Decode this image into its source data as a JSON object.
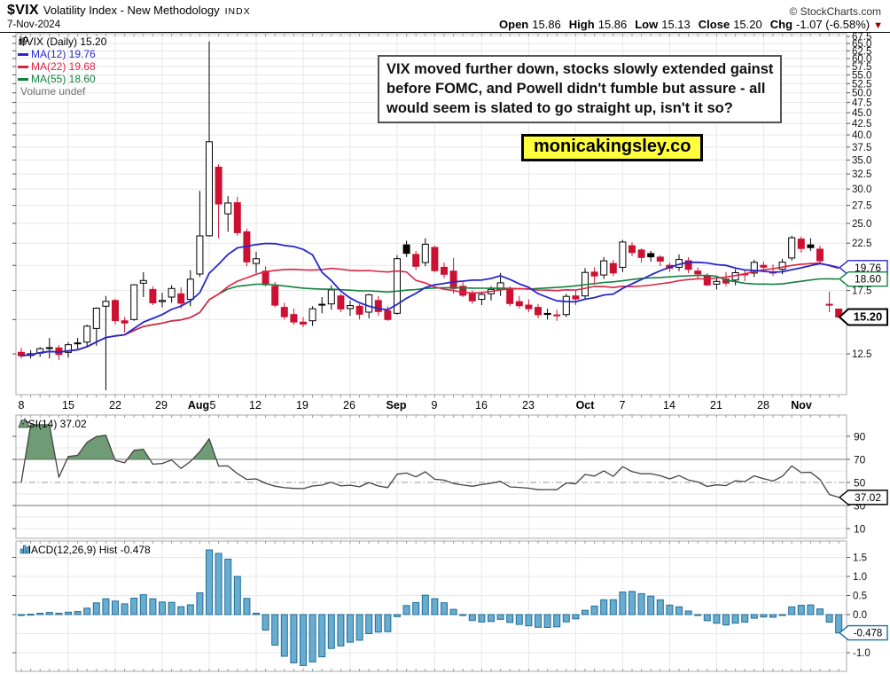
{
  "header": {
    "symbol": "$VIX",
    "name": "Volatility Index - New Methodology",
    "exchange": "INDX",
    "date": "7-Nov-2024",
    "credit": "© StockCharts.com",
    "quote": {
      "open_label": "Open",
      "open": "15.86",
      "high_label": "High",
      "high": "15.86",
      "low_label": "Low",
      "low": "15.13",
      "close_label": "Close",
      "close": "15.20",
      "chg_label": "Chg",
      "chg": "-1.07 (-6.58%)"
    }
  },
  "legend_main": {
    "symbol_line": "$VIX (Daily) 15.20",
    "ma12": "MA(12) 19.76",
    "ma22": "MA(22) 19.68",
    "ma55": "MA(55) 18.60",
    "volume": "Volume undef"
  },
  "legend_rsi": "RSI(14) 37.02",
  "legend_macd": "MACD(12,26,9) Hist -0.478",
  "callouts": {
    "ma12": "19.76",
    "ma55": "18.60",
    "close": "15.20",
    "rsi": "37.02",
    "macd": "-0.478"
  },
  "annotation": {
    "lines": [
      "VIX moved further down, stocks slowly extended gainst",
      "before FOMC, and Powell didn't fumble but assure - all",
      "would seem is slated to go straight up, isn't it so?"
    ],
    "site": "monicakingsley.co"
  },
  "colors": {
    "candle_down": "#CC1133",
    "ma12": "#2727CC",
    "ma22": "#DD2244",
    "ma55": "#12813E",
    "rsi_line": "#444444",
    "rsi_fill": "#6F9C74",
    "macd_fill": "#68ACCF",
    "macd_stroke": "#1F6E99",
    "grid": "#E7E7E7",
    "border": "#AAAAAA",
    "volume_text": "#707070",
    "accent_yellow": "#FFFF3B",
    "chg_arrow": "#990000"
  },
  "chart_data": {
    "type": "candlestick",
    "title": "$VIX (Daily)",
    "scale": "log",
    "panels": [
      {
        "name": "price",
        "ylim": [
          11.5,
          68.5
        ],
        "y_ticks": {
          "min": 12.5,
          "max": 67.5,
          "step": 2.5,
          "hidden_labels": [
            15.0,
            20.0
          ]
        }
      },
      {
        "name": "rsi",
        "period": 14,
        "value": 37.02,
        "ylim": [
          0,
          100
        ],
        "y_ticks": [
          90,
          70,
          50,
          30,
          10
        ],
        "overbought": 70,
        "midline": 50,
        "oversold": 30
      },
      {
        "name": "macd_hist",
        "params": [
          12,
          26,
          9
        ],
        "value": -0.478,
        "y_ticks": [
          1.5,
          1.0,
          0.5,
          0.0,
          -1.0
        ]
      }
    ],
    "overlays": [
      {
        "name": "MA12",
        "period": 12,
        "last": 19.76
      },
      {
        "name": "MA22",
        "period": 22,
        "last": 19.68
      },
      {
        "name": "MA55",
        "period": 55,
        "last": 18.6
      }
    ],
    "x_labels": [
      [
        "8",
        24,
        0
      ],
      [
        "15",
        77,
        0
      ],
      [
        "22",
        130,
        0
      ],
      [
        "29",
        182,
        0
      ],
      [
        "Aug",
        224,
        1
      ],
      [
        "5",
        240,
        0
      ],
      [
        "12",
        288,
        0
      ],
      [
        "19",
        341,
        0
      ],
      [
        "26",
        394,
        0
      ],
      [
        "Sep",
        447,
        1
      ],
      [
        "9",
        490,
        0
      ],
      [
        "16",
        543,
        0
      ],
      [
        "23",
        596,
        0
      ],
      [
        "Oct",
        660,
        1
      ],
      [
        "7",
        702,
        0
      ],
      [
        "14",
        755,
        0
      ],
      [
        "21",
        808,
        0
      ],
      [
        "28",
        861,
        0
      ],
      [
        "Nov",
        904,
        1
      ]
    ],
    "grid_idx": [
      5,
      10,
      15,
      20,
      25,
      30,
      35,
      40,
      44,
      49,
      54,
      59,
      64,
      69,
      74,
      79,
      83
    ],
    "dates": [
      "Jul 8",
      "Jul 9",
      "Jul 10",
      "Jul 11",
      "Jul 12",
      "Jul 15",
      "Jul 16",
      "Jul 17",
      "Jul 18",
      "Jul 19",
      "Jul 22",
      "Jul 23",
      "Jul 24",
      "Jul 25",
      "Jul 26",
      "Jul 29",
      "Jul 30",
      "Jul 31",
      "Aug 1",
      "Aug 2",
      "Aug 5",
      "Aug 6",
      "Aug 7",
      "Aug 8",
      "Aug 9",
      "Aug 12",
      "Aug 13",
      "Aug 14",
      "Aug 15",
      "Aug 16",
      "Aug 19",
      "Aug 20",
      "Aug 21",
      "Aug 22",
      "Aug 23",
      "Aug 26",
      "Aug 27",
      "Aug 28",
      "Aug 29",
      "Aug 30",
      "Sep 3",
      "Sep 4",
      "Sep 5",
      "Sep 6",
      "Sep 9",
      "Sep 10",
      "Sep 11",
      "Sep 12",
      "Sep 13",
      "Sep 16",
      "Sep 17",
      "Sep 18",
      "Sep 19",
      "Sep 20",
      "Sep 23",
      "Sep 24",
      "Sep 25",
      "Sep 26",
      "Sep 27",
      "Sep 30",
      "Oct 1",
      "Oct 2",
      "Oct 3",
      "Oct 4",
      "Oct 7",
      "Oct 8",
      "Oct 9",
      "Oct 10",
      "Oct 11",
      "Oct 14",
      "Oct 15",
      "Oct 16",
      "Oct 17",
      "Oct 18",
      "Oct 21",
      "Oct 22",
      "Oct 23",
      "Oct 24",
      "Oct 25",
      "Oct 28",
      "Oct 29",
      "Oct 30",
      "Oct 31",
      "Nov 1",
      "Nov 4",
      "Nov 5",
      "Nov 6",
      "Nov 7"
    ],
    "ohlc": [
      [
        12.6,
        12.9,
        12.2,
        12.37
      ],
      [
        12.4,
        12.75,
        12.2,
        12.51
      ],
      [
        12.55,
        12.95,
        12.3,
        12.85
      ],
      [
        12.9,
        13.6,
        12.2,
        12.92
      ],
      [
        12.9,
        13.1,
        12.1,
        12.46
      ],
      [
        12.6,
        13.3,
        12.25,
        13.12
      ],
      [
        13.25,
        13.6,
        12.85,
        13.19
      ],
      [
        13.3,
        14.6,
        13.0,
        14.48
      ],
      [
        14.3,
        16.0,
        13.05,
        15.93
      ],
      [
        16.1,
        17.0,
        10.3,
        16.52
      ],
      [
        16.6,
        16.75,
        14.6,
        14.91
      ],
      [
        14.9,
        15.2,
        14.0,
        14.72
      ],
      [
        15.0,
        18.1,
        14.9,
        18.04
      ],
      [
        18.2,
        19.3,
        16.9,
        18.46
      ],
      [
        17.6,
        17.9,
        16.2,
        16.39
      ],
      [
        16.5,
        17.3,
        16.0,
        16.6
      ],
      [
        16.9,
        18.0,
        16.4,
        17.69
      ],
      [
        17.2,
        17.8,
        15.9,
        16.36
      ],
      [
        16.7,
        19.5,
        16.1,
        18.59
      ],
      [
        19.1,
        29.7,
        18.8,
        23.39
      ],
      [
        23.4,
        65.7,
        23.3,
        38.57
      ],
      [
        33.7,
        34.2,
        23.1,
        27.71
      ],
      [
        26.3,
        28.9,
        23.9,
        27.85
      ],
      [
        27.9,
        28.8,
        23.4,
        23.79
      ],
      [
        23.9,
        24.3,
        19.9,
        20.37
      ],
      [
        20.2,
        21.5,
        19.2,
        20.71
      ],
      [
        19.4,
        19.9,
        17.9,
        18.04
      ],
      [
        17.9,
        18.3,
        16.0,
        16.19
      ],
      [
        16.0,
        16.4,
        15.0,
        15.23
      ],
      [
        15.4,
        15.9,
        14.6,
        14.8
      ],
      [
        14.8,
        15.2,
        14.4,
        14.65
      ],
      [
        14.9,
        16.1,
        14.5,
        15.88
      ],
      [
        16.2,
        16.9,
        15.5,
        16.27
      ],
      [
        16.3,
        18.0,
        15.8,
        17.56
      ],
      [
        17.0,
        17.2,
        15.6,
        15.86
      ],
      [
        15.9,
        16.6,
        15.3,
        16.15
      ],
      [
        16.1,
        16.3,
        15.0,
        15.43
      ],
      [
        15.6,
        17.2,
        15.1,
        17.11
      ],
      [
        16.6,
        17.0,
        15.3,
        15.65
      ],
      [
        15.7,
        16.1,
        14.9,
        15.0
      ],
      [
        15.5,
        21.1,
        15.4,
        20.72
      ],
      [
        22.3,
        22.8,
        20.9,
        21.31
      ],
      [
        21.2,
        21.6,
        19.5,
        19.9
      ],
      [
        20.3,
        23.1,
        19.9,
        22.38
      ],
      [
        22.0,
        22.2,
        19.3,
        19.45
      ],
      [
        19.8,
        20.3,
        18.7,
        19.08
      ],
      [
        19.4,
        20.8,
        17.2,
        17.69
      ],
      [
        17.9,
        18.3,
        16.9,
        17.07
      ],
      [
        17.3,
        17.5,
        16.3,
        16.56
      ],
      [
        16.7,
        17.4,
        16.2,
        17.14
      ],
      [
        17.2,
        17.9,
        16.6,
        17.61
      ],
      [
        17.6,
        19.2,
        17.0,
        18.23
      ],
      [
        17.6,
        17.9,
        16.1,
        16.33
      ],
      [
        16.5,
        17.0,
        15.9,
        16.15
      ],
      [
        16.2,
        16.7,
        15.6,
        15.89
      ],
      [
        16.0,
        16.3,
        15.1,
        15.39
      ],
      [
        15.5,
        15.9,
        15.0,
        15.41
      ],
      [
        15.3,
        15.8,
        14.9,
        15.37
      ],
      [
        15.4,
        17.2,
        15.2,
        16.96
      ],
      [
        17.0,
        17.5,
        16.2,
        16.73
      ],
      [
        17.0,
        19.7,
        16.7,
        19.26
      ],
      [
        19.3,
        19.8,
        18.2,
        18.9
      ],
      [
        19.0,
        20.9,
        18.6,
        20.49
      ],
      [
        20.2,
        20.6,
        18.9,
        19.21
      ],
      [
        19.8,
        22.9,
        19.3,
        22.64
      ],
      [
        22.2,
        22.6,
        21.0,
        21.42
      ],
      [
        21.7,
        21.9,
        20.3,
        20.86
      ],
      [
        21.3,
        21.6,
        20.4,
        20.93
      ],
      [
        20.9,
        21.1,
        19.9,
        20.46
      ],
      [
        20.0,
        20.3,
        19.3,
        19.7
      ],
      [
        19.8,
        21.2,
        19.4,
        20.64
      ],
      [
        20.5,
        20.9,
        19.2,
        19.58
      ],
      [
        19.4,
        19.8,
        18.6,
        19.11
      ],
      [
        18.9,
        19.2,
        17.9,
        18.03
      ],
      [
        18.1,
        18.9,
        17.6,
        18.37
      ],
      [
        18.6,
        19.3,
        17.9,
        18.2
      ],
      [
        18.5,
        19.6,
        18.0,
        19.24
      ],
      [
        19.1,
        19.6,
        18.4,
        19.08
      ],
      [
        19.2,
        20.6,
        18.8,
        20.33
      ],
      [
        20.0,
        20.4,
        19.3,
        19.8
      ],
      [
        19.2,
        20.1,
        18.9,
        19.34
      ],
      [
        19.6,
        20.7,
        19.1,
        20.35
      ],
      [
        20.8,
        23.4,
        20.5,
        23.16
      ],
      [
        23.0,
        23.3,
        21.4,
        21.88
      ],
      [
        22.3,
        23.1,
        21.6,
        21.98
      ],
      [
        21.8,
        22.2,
        20.1,
        20.49
      ],
      [
        16.2,
        17.4,
        15.6,
        16.27
      ],
      [
        15.86,
        15.86,
        15.13,
        15.2
      ]
    ]
  }
}
